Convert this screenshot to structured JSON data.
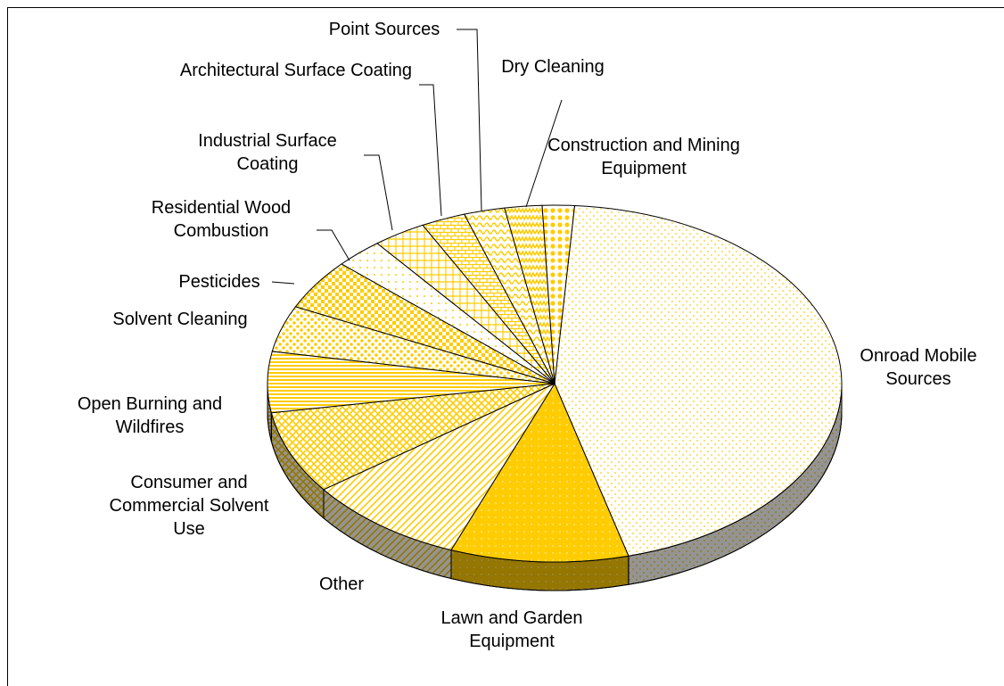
{
  "chart_data": {
    "type": "pie",
    "three_d": true,
    "color": "#FFCC00",
    "categories": [
      "Onroad Mobile Sources",
      "Lawn and Garden Equipment",
      "Other",
      "Consumer and Commercial Solvent Use",
      "Open Burning and Wildfires",
      "Solvent Cleaning",
      "Pesticides",
      "Residential Wood Combustion",
      "Industrial Surface Coating",
      "Architectural Surface Coating",
      "Point Sources",
      "Dry Cleaning",
      "Construction and Mining Equipment"
    ],
    "values": [
      44.7,
      10,
      9,
      7.5,
      5.5,
      4.2,
      4.6,
      2.7,
      3,
      2.5,
      2.3,
      2.1,
      1.8
    ]
  }
}
